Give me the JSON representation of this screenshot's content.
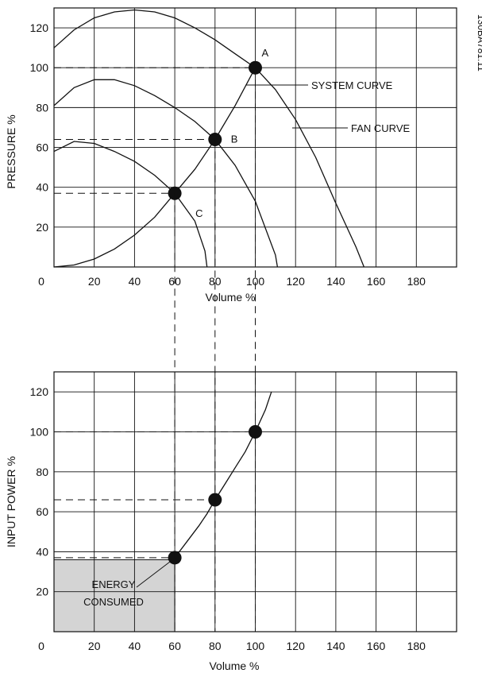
{
  "figure_code": "130BA781.11",
  "colors": {
    "ink": "#111111",
    "energy_fill": "#d4d4d4",
    "background": "#ffffff"
  },
  "chart_data": [
    {
      "type": "line",
      "xlabel": "Volume %",
      "ylabel": "PRESSURE %",
      "xlim": [
        0,
        200
      ],
      "ylim": [
        0,
        130
      ],
      "grid": true,
      "x_ticks": [
        0,
        20,
        40,
        60,
        80,
        100,
        120,
        140,
        160,
        180
      ],
      "y_ticks": [
        20,
        40,
        60,
        80,
        100,
        120
      ],
      "series": [
        {
          "name": "SYSTEM CURVE",
          "points": [
            [
              0,
              0
            ],
            [
              10,
              1
            ],
            [
              20,
              4
            ],
            [
              30,
              9
            ],
            [
              40,
              16
            ],
            [
              50,
              25
            ],
            [
              60,
              37
            ],
            [
              70,
              49
            ],
            [
              80,
              64
            ],
            [
              90,
              81
            ],
            [
              100,
              100
            ]
          ]
        },
        {
          "name": "FAN CURVE",
          "points": [
            [
              0,
              110
            ],
            [
              10,
              119
            ],
            [
              20,
              125
            ],
            [
              30,
              128
            ],
            [
              40,
              129
            ],
            [
              50,
              128
            ],
            [
              60,
              125
            ],
            [
              70,
              120
            ],
            [
              80,
              114
            ],
            [
              90,
              107
            ],
            [
              100,
              100
            ],
            [
              110,
              89
            ],
            [
              120,
              74
            ],
            [
              130,
              55
            ],
            [
              140,
              32
            ],
            [
              150,
              10
            ],
            [
              154,
              0
            ]
          ]
        },
        {
          "points": [
            [
              0,
              81
            ],
            [
              10,
              90
            ],
            [
              20,
              94
            ],
            [
              30,
              94
            ],
            [
              40,
              91
            ],
            [
              50,
              86
            ],
            [
              60,
              80
            ],
            [
              70,
              73
            ],
            [
              80,
              64
            ],
            [
              90,
              51
            ],
            [
              100,
              33
            ],
            [
              110,
              6
            ],
            [
              111,
              0
            ]
          ]
        },
        {
          "points": [
            [
              0,
              58
            ],
            [
              10,
              63
            ],
            [
              20,
              62
            ],
            [
              30,
              58
            ],
            [
              40,
              53
            ],
            [
              50,
              46
            ],
            [
              60,
              37
            ],
            [
              70,
              23
            ],
            [
              75,
              8
            ],
            [
              76,
              0
            ]
          ]
        }
      ],
      "operating_points": [
        {
          "label": "A",
          "x": 100,
          "y": 100
        },
        {
          "label": "B",
          "x": 80,
          "y": 64
        },
        {
          "label": "C",
          "x": 60,
          "y": 37
        }
      ]
    },
    {
      "type": "line",
      "xlabel": "Volume %",
      "ylabel": "INPUT POWER %",
      "xlim": [
        0,
        200
      ],
      "ylim": [
        0,
        130
      ],
      "grid": true,
      "x_ticks": [
        0,
        20,
        40,
        60,
        80,
        100,
        120,
        140,
        160,
        180
      ],
      "y_ticks": [
        20,
        40,
        60,
        80,
        100,
        120
      ],
      "series": [
        {
          "points": [
            [
              60,
              37
            ],
            [
              66,
              45
            ],
            [
              72,
              53
            ],
            [
              76,
              59
            ],
            [
              80,
              66
            ],
            [
              85,
              74
            ],
            [
              90,
              82
            ],
            [
              95,
              90
            ],
            [
              100,
              100
            ],
            [
              105,
              111
            ],
            [
              108,
              120
            ]
          ]
        }
      ],
      "operating_points": [
        {
          "x": 100,
          "y": 100
        },
        {
          "x": 80,
          "y": 66
        },
        {
          "x": 60,
          "y": 37
        }
      ],
      "shaded_region": {
        "label_lines": [
          "ENERGY",
          "CONSUMED"
        ],
        "x": [
          0,
          60
        ],
        "y": [
          0,
          36
        ]
      }
    }
  ]
}
